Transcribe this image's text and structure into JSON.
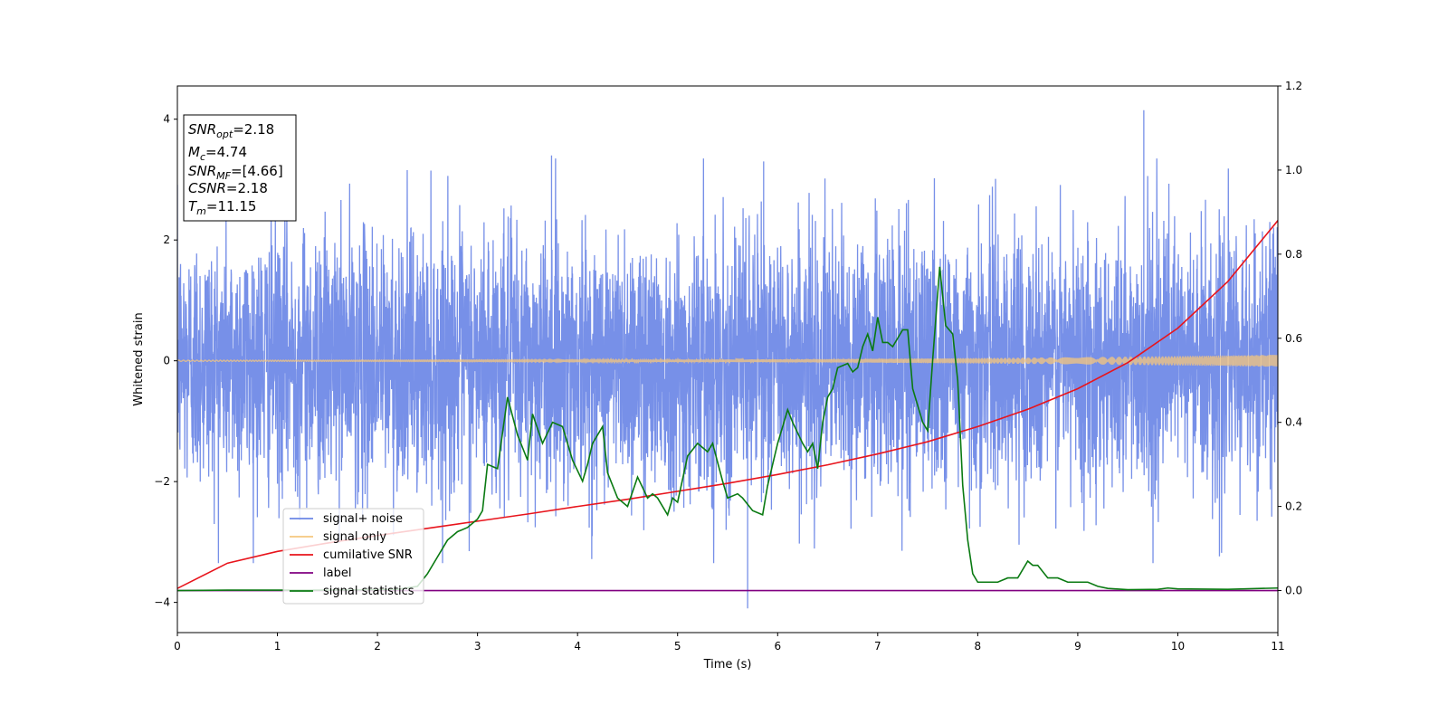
{
  "chart_data": {
    "type": "line",
    "xlabel": "Time (s)",
    "ylabel": "Whitened strain",
    "xlim": [
      0,
      11
    ],
    "ylim": [
      -4.5,
      4.55
    ],
    "y2lim": [
      -0.1,
      1.2
    ],
    "xticks": [
      0,
      1,
      2,
      3,
      4,
      5,
      6,
      7,
      8,
      9,
      10,
      11
    ],
    "yticks": [
      -4,
      -2,
      0,
      2,
      4
    ],
    "y2ticks": [
      0.0,
      0.2,
      0.4,
      0.6,
      0.8,
      1.0,
      1.2
    ],
    "y2tick_labels": [
      "0.0",
      "0.2",
      "0.4",
      "0.6",
      "0.8",
      "1.0",
      "1.2"
    ],
    "grid": false,
    "legend_position": "lower-left",
    "info_box": {
      "lines": [
        {
          "main": "SNR",
          "sub": "opt",
          "value": "=2.18"
        },
        {
          "main": "M",
          "sub": "c",
          "value": "=4.74"
        },
        {
          "main": "SNR",
          "sub": "MF",
          "value": "=[4.66]"
        },
        {
          "main": "CSNR",
          "sub": "",
          "value": "=2.18"
        },
        {
          "main": "T",
          "sub": "m",
          "value": "=11.15"
        }
      ]
    },
    "series": [
      {
        "name": "signal+ noise",
        "color": "#6b87e6",
        "axis": "left",
        "description_values": {
          "typical_range": [
            -2.0,
            2.0
          ],
          "min": -4.1,
          "max": 4.15,
          "max_at": 9.66,
          "min_at": 5.7
        }
      },
      {
        "name": "signal only",
        "color": "#f5c77e",
        "axis": "left",
        "amplitude_start": 0.01,
        "amplitude_end": 0.1
      },
      {
        "name": "cumilative SNR",
        "color": "#e8141c",
        "axis": "right",
        "x": [
          0,
          0.5,
          1,
          1.5,
          2,
          2.5,
          3,
          3.5,
          4,
          4.5,
          5,
          5.5,
          6,
          6.5,
          7,
          7.5,
          8,
          8.5,
          9,
          9.5,
          10,
          10.5,
          11
        ],
        "y": [
          0.005,
          0.065,
          0.093,
          0.113,
          0.131,
          0.148,
          0.165,
          0.182,
          0.2,
          0.217,
          0.236,
          0.255,
          0.276,
          0.299,
          0.325,
          0.354,
          0.39,
          0.431,
          0.48,
          0.542,
          0.624,
          0.735,
          0.88
        ]
      },
      {
        "name": "label",
        "color": "#800080",
        "axis": "right",
        "x": [
          0,
          11
        ],
        "y": [
          0.0,
          0.0
        ]
      },
      {
        "name": "signal statistics",
        "color": "#0a7a12",
        "axis": "right",
        "x": [
          0,
          0.5,
          1,
          1.5,
          2,
          2.2,
          2.4,
          2.5,
          2.6,
          2.7,
          2.8,
          2.9,
          3.0,
          3.05,
          3.1,
          3.2,
          3.3,
          3.4,
          3.5,
          3.55,
          3.65,
          3.75,
          3.85,
          3.95,
          4.05,
          4.1,
          4.15,
          4.25,
          4.3,
          4.4,
          4.5,
          4.6,
          4.7,
          4.75,
          4.8,
          4.9,
          4.95,
          5.0,
          5.1,
          5.2,
          5.3,
          5.35,
          5.45,
          5.5,
          5.6,
          5.65,
          5.75,
          5.85,
          5.9,
          6.0,
          6.05,
          6.1,
          6.15,
          6.25,
          6.3,
          6.35,
          6.4,
          6.45,
          6.5,
          6.55,
          6.6,
          6.7,
          6.75,
          6.8,
          6.85,
          6.9,
          6.95,
          7.0,
          7.05,
          7.1,
          7.15,
          7.2,
          7.25,
          7.3,
          7.35,
          7.45,
          7.5,
          7.55,
          7.62,
          7.68,
          7.75,
          7.8,
          7.85,
          7.9,
          7.95,
          8.0,
          8.05,
          8.1,
          8.2,
          8.3,
          8.4,
          8.5,
          8.55,
          8.6,
          8.7,
          8.8,
          8.9,
          9.0,
          9.1,
          9.2,
          9.3,
          9.5,
          9.8,
          9.9,
          10.0,
          10.5,
          11.0
        ],
        "y": [
          0.0,
          0.001,
          0.001,
          0.001,
          0.002,
          0.003,
          0.01,
          0.04,
          0.08,
          0.12,
          0.14,
          0.15,
          0.17,
          0.19,
          0.3,
          0.29,
          0.46,
          0.37,
          0.31,
          0.42,
          0.35,
          0.4,
          0.39,
          0.31,
          0.26,
          0.3,
          0.35,
          0.39,
          0.28,
          0.22,
          0.2,
          0.27,
          0.22,
          0.23,
          0.22,
          0.18,
          0.22,
          0.21,
          0.32,
          0.35,
          0.33,
          0.35,
          0.26,
          0.22,
          0.23,
          0.22,
          0.19,
          0.18,
          0.25,
          0.35,
          0.39,
          0.43,
          0.4,
          0.35,
          0.33,
          0.35,
          0.29,
          0.4,
          0.46,
          0.48,
          0.53,
          0.54,
          0.52,
          0.53,
          0.58,
          0.61,
          0.57,
          0.65,
          0.59,
          0.59,
          0.58,
          0.6,
          0.62,
          0.62,
          0.48,
          0.4,
          0.38,
          0.55,
          0.77,
          0.63,
          0.61,
          0.5,
          0.25,
          0.12,
          0.04,
          0.02,
          0.02,
          0.02,
          0.02,
          0.03,
          0.03,
          0.07,
          0.06,
          0.06,
          0.03,
          0.03,
          0.02,
          0.02,
          0.02,
          0.01,
          0.005,
          0.002,
          0.003,
          0.006,
          0.004,
          0.003,
          0.006
        ]
      }
    ]
  }
}
